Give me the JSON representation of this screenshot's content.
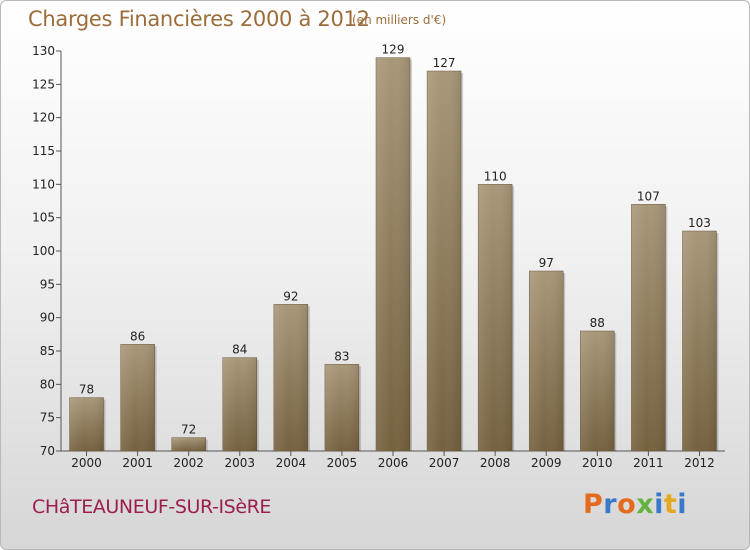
{
  "header": {
    "title": "Charges Financières 2000 à 2012",
    "subtitle": "(en milliers d'€)"
  },
  "footer": {
    "commune": "CHâTEAUNEUF-SUR-ISèRE",
    "logo": "Proxiti"
  },
  "colors": {
    "bar_top": "#a99779",
    "bar_bottom": "#75613f",
    "title": "#9c6d3a",
    "commune": "#9c1e50",
    "logo_letters": [
      "#e46b1e",
      "#3a78c8",
      "#e46b1e",
      "#63b33f",
      "#3a78c8",
      "#e4a91e",
      "#3a78c8"
    ]
  },
  "chart_data": {
    "type": "bar",
    "title": "Charges Financières 2000 à 2012",
    "subtitle": "(en milliers d'€)",
    "categories": [
      "2000",
      "2001",
      "2002",
      "2003",
      "2004",
      "2005",
      "2006",
      "2007",
      "2008",
      "2009",
      "2010",
      "2011",
      "2012"
    ],
    "values": [
      78,
      86,
      72,
      84,
      92,
      83,
      129,
      127,
      110,
      97,
      88,
      107,
      103
    ],
    "ylim": [
      70,
      130
    ],
    "yticks": [
      70,
      75,
      80,
      85,
      90,
      95,
      100,
      105,
      110,
      115,
      120,
      125,
      130
    ],
    "grid": false,
    "xlabel": "",
    "ylabel": ""
  }
}
